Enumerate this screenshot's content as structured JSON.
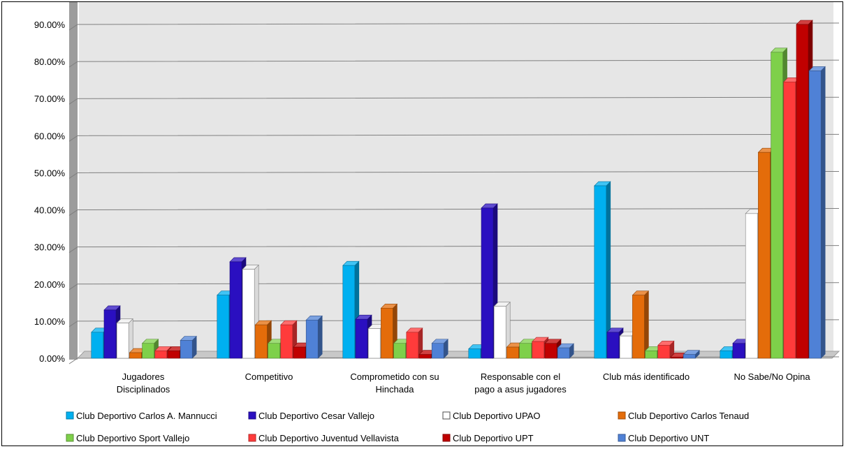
{
  "chart_data": {
    "type": "bar",
    "title": "",
    "xlabel": "",
    "ylabel": "",
    "ylim": [
      0,
      0.9
    ],
    "y_ticks": [
      "0.00%",
      "10.00%",
      "20.00%",
      "30.00%",
      "40.00%",
      "50.00%",
      "60.00%",
      "70.00%",
      "80.00%",
      "90.00%"
    ],
    "grid": true,
    "legend_position": "bottom",
    "categories": [
      [
        "Jugadores",
        "Disciplinados"
      ],
      [
        "Competitivo"
      ],
      [
        "Comprometido con su",
        "Hinchada"
      ],
      [
        "Responsable con el",
        "pago a asus jugadores"
      ],
      [
        "Club más identificado"
      ],
      [
        "No Sabe/No Opina"
      ]
    ],
    "series": [
      {
        "name": "Club Deportivo Carlos A. Mannucci",
        "color": "#00b0f0",
        "values": [
          0.07,
          0.17,
          0.25,
          0.025,
          0.465,
          0.02
        ]
      },
      {
        "name": "Club Deportivo Cesar Vallejo",
        "color": "#2a0fc0",
        "values": [
          0.13,
          0.26,
          0.105,
          0.405,
          0.07,
          0.04
        ]
      },
      {
        "name": "Club Deportivo UPAO",
        "color": "#ffffff",
        "values": [
          0.095,
          0.24,
          0.08,
          0.14,
          0.06,
          0.39
        ]
      },
      {
        "name": "Club Deportivo Carlos Tenaud",
        "color": "#e46c0a",
        "values": [
          0.015,
          0.09,
          0.135,
          0.03,
          0.17,
          0.555
        ]
      },
      {
        "name": "Club Deportivo  Sport Vallejo",
        "color": "#7ed04a",
        "values": [
          0.04,
          0.04,
          0.04,
          0.04,
          0.02,
          0.825
        ]
      },
      {
        "name": "Club Deportivo  Juventud Vellavista",
        "color": "#ff3b3b",
        "values": [
          0.02,
          0.09,
          0.07,
          0.045,
          0.035,
          0.745
        ]
      },
      {
        "name": "Club Deportivo  UPT",
        "color": "#c00000",
        "values": [
          0.02,
          0.03,
          0.01,
          0.04,
          0.003,
          0.9
        ]
      },
      {
        "name": "Club Deportivo  UNT",
        "color": "#4f81d6",
        "values": [
          0.048,
          0.103,
          0.04,
          0.028,
          0.01,
          0.775
        ]
      }
    ]
  }
}
